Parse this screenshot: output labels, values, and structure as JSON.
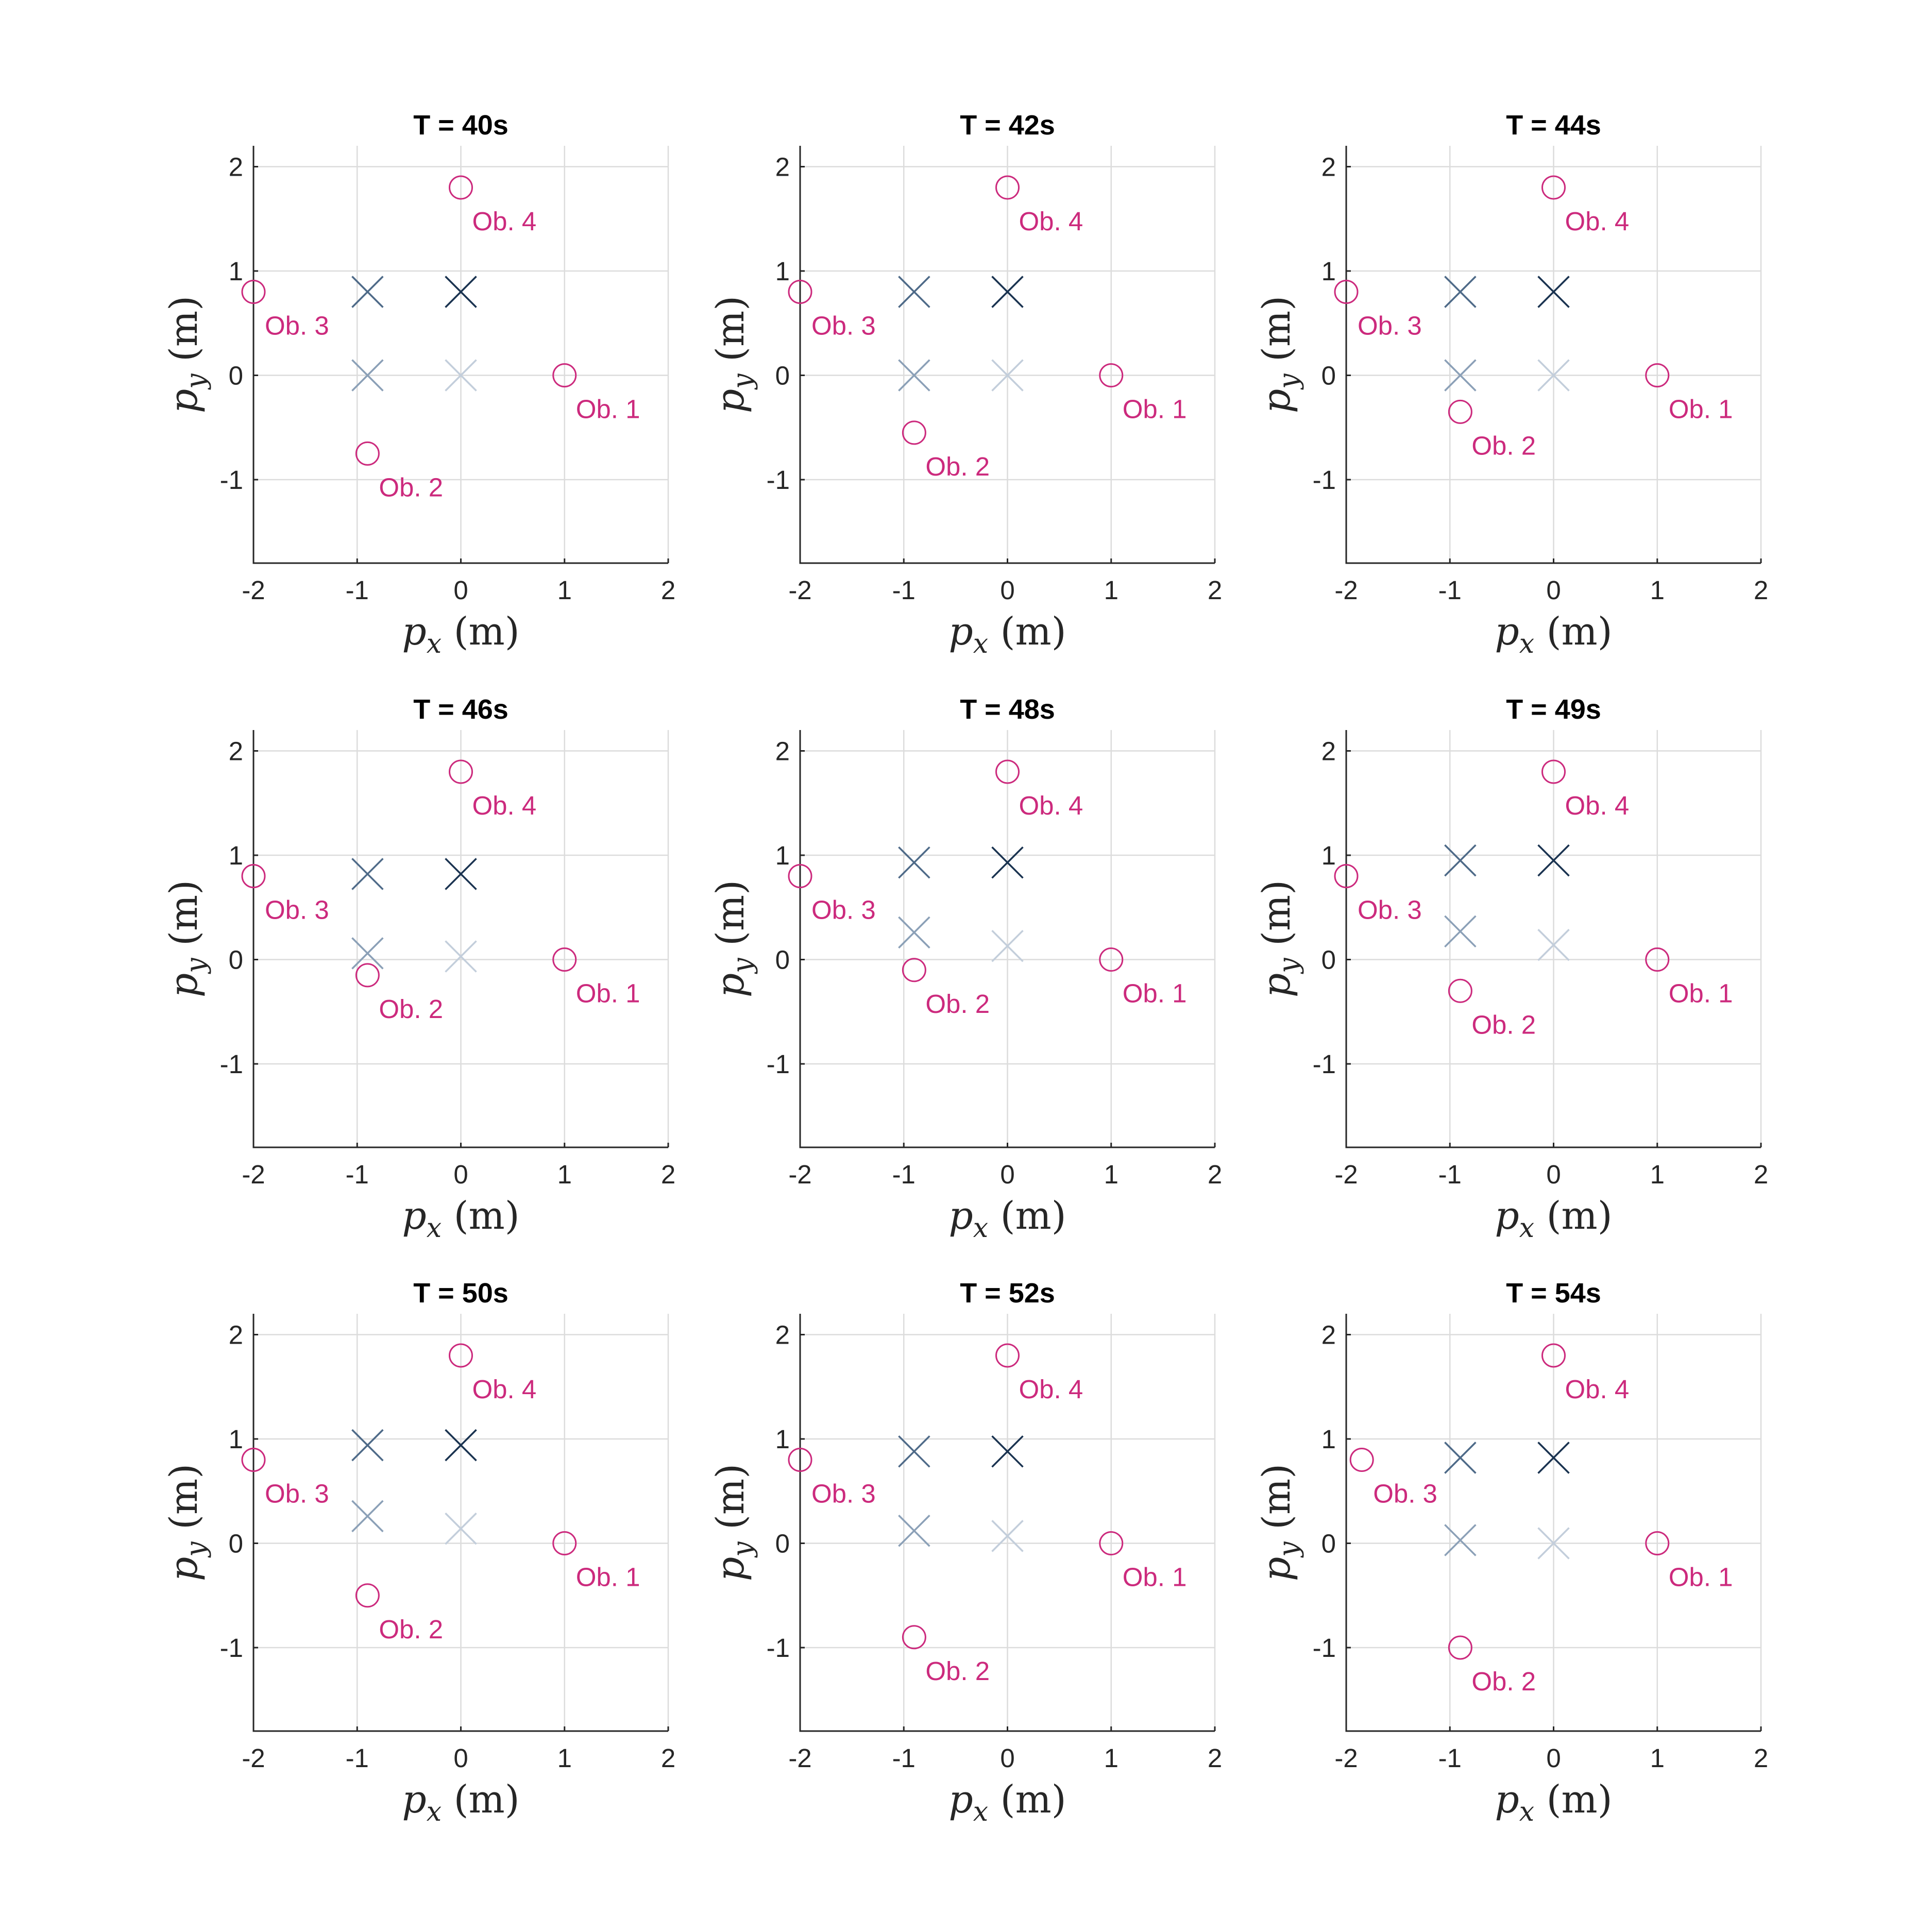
{
  "figure": {
    "colors": {
      "obstacle": "#cc2a7d",
      "agent_dark": "#1a3350",
      "agent_mid": "#4e6a88",
      "agent_light": "#8ba0b7",
      "agent_faint": "#c3cedb"
    }
  },
  "chart_data": [
    {
      "type": "scatter",
      "title": "T = 40s",
      "xlabel": "p_x (m)",
      "ylabel": "p_y (m)",
      "xlim": [
        -2,
        2
      ],
      "ylim": [
        -1.8,
        2.2
      ],
      "xticks": [
        -2,
        -1,
        0,
        1,
        2
      ],
      "yticks": [
        -1,
        0,
        1,
        2
      ],
      "xtick_labels": [
        "-2",
        "-1",
        "0",
        "1",
        "2"
      ],
      "ytick_labels": [
        "-1",
        "0",
        "1",
        "2"
      ],
      "grid": true,
      "obstacles": [
        {
          "label": "Ob. 1",
          "x": 1.0,
          "y": 0.0
        },
        {
          "label": "Ob. 2",
          "x": -0.9,
          "y": -0.75
        },
        {
          "label": "Ob. 3",
          "x": -2.0,
          "y": 0.8
        },
        {
          "label": "Ob. 4",
          "x": 0.0,
          "y": 1.8
        }
      ],
      "agents": [
        {
          "x": 0.0,
          "y": 0.8,
          "shade": "agent_dark"
        },
        {
          "x": -0.9,
          "y": 0.8,
          "shade": "agent_mid"
        },
        {
          "x": -0.9,
          "y": 0.0,
          "shade": "agent_light"
        },
        {
          "x": 0.0,
          "y": 0.0,
          "shade": "agent_faint"
        }
      ]
    },
    {
      "type": "scatter",
      "title": "T = 42s",
      "xlabel": "p_x (m)",
      "ylabel": "p_y (m)",
      "xlim": [
        -2,
        2
      ],
      "ylim": [
        -1.8,
        2.2
      ],
      "xticks": [
        -2,
        -1,
        0,
        1,
        2
      ],
      "yticks": [
        -1,
        0,
        1,
        2
      ],
      "xtick_labels": [
        "-2",
        "-1",
        "0",
        "1",
        "2"
      ],
      "ytick_labels": [
        "-1",
        "0",
        "1",
        "2"
      ],
      "grid": true,
      "obstacles": [
        {
          "label": "Ob. 1",
          "x": 1.0,
          "y": 0.0
        },
        {
          "label": "Ob. 2",
          "x": -0.9,
          "y": -0.55
        },
        {
          "label": "Ob. 3",
          "x": -2.0,
          "y": 0.8
        },
        {
          "label": "Ob. 4",
          "x": 0.0,
          "y": 1.8
        }
      ],
      "agents": [
        {
          "x": 0.0,
          "y": 0.8,
          "shade": "agent_dark"
        },
        {
          "x": -0.9,
          "y": 0.8,
          "shade": "agent_mid"
        },
        {
          "x": -0.9,
          "y": 0.0,
          "shade": "agent_light"
        },
        {
          "x": 0.0,
          "y": 0.0,
          "shade": "agent_faint"
        }
      ]
    },
    {
      "type": "scatter",
      "title": "T = 44s",
      "xlabel": "p_x (m)",
      "ylabel": "p_y (m)",
      "xlim": [
        -2,
        2
      ],
      "ylim": [
        -1.8,
        2.2
      ],
      "xticks": [
        -2,
        -1,
        0,
        1,
        2
      ],
      "yticks": [
        -1,
        0,
        1,
        2
      ],
      "xtick_labels": [
        "-2",
        "-1",
        "0",
        "1",
        "2"
      ],
      "ytick_labels": [
        "-1",
        "0",
        "1",
        "2"
      ],
      "grid": true,
      "obstacles": [
        {
          "label": "Ob. 1",
          "x": 1.0,
          "y": 0.0
        },
        {
          "label": "Ob. 2",
          "x": -0.9,
          "y": -0.35
        },
        {
          "label": "Ob. 3",
          "x": -2.0,
          "y": 0.8
        },
        {
          "label": "Ob. 4",
          "x": 0.0,
          "y": 1.8
        }
      ],
      "agents": [
        {
          "x": 0.0,
          "y": 0.8,
          "shade": "agent_dark"
        },
        {
          "x": -0.9,
          "y": 0.8,
          "shade": "agent_mid"
        },
        {
          "x": -0.9,
          "y": 0.0,
          "shade": "agent_light"
        },
        {
          "x": 0.0,
          "y": 0.0,
          "shade": "agent_faint"
        }
      ]
    },
    {
      "type": "scatter",
      "title": "T = 46s",
      "xlabel": "p_x (m)",
      "ylabel": "p_y (m)",
      "xlim": [
        -2,
        2
      ],
      "ylim": [
        -1.8,
        2.2
      ],
      "xticks": [
        -2,
        -1,
        0,
        1,
        2
      ],
      "yticks": [
        -1,
        0,
        1,
        2
      ],
      "xtick_labels": [
        "-2",
        "-1",
        "0",
        "1",
        "2"
      ],
      "ytick_labels": [
        "-1",
        "0",
        "1",
        "2"
      ],
      "grid": true,
      "obstacles": [
        {
          "label": "Ob. 1",
          "x": 1.0,
          "y": 0.0
        },
        {
          "label": "Ob. 2",
          "x": -0.9,
          "y": -0.15
        },
        {
          "label": "Ob. 3",
          "x": -2.0,
          "y": 0.8
        },
        {
          "label": "Ob. 4",
          "x": 0.0,
          "y": 1.8
        }
      ],
      "agents": [
        {
          "x": 0.0,
          "y": 0.82,
          "shade": "agent_dark"
        },
        {
          "x": -0.9,
          "y": 0.82,
          "shade": "agent_mid"
        },
        {
          "x": -0.9,
          "y": 0.06,
          "shade": "agent_light"
        },
        {
          "x": 0.0,
          "y": 0.03,
          "shade": "agent_faint"
        }
      ]
    },
    {
      "type": "scatter",
      "title": "T = 48s",
      "xlabel": "p_x (m)",
      "ylabel": "p_y (m)",
      "xlim": [
        -2,
        2
      ],
      "ylim": [
        -1.8,
        2.2
      ],
      "xticks": [
        -2,
        -1,
        0,
        1,
        2
      ],
      "yticks": [
        -1,
        0,
        1,
        2
      ],
      "xtick_labels": [
        "-2",
        "-1",
        "0",
        "1",
        "2"
      ],
      "ytick_labels": [
        "-1",
        "0",
        "1",
        "2"
      ],
      "grid": true,
      "obstacles": [
        {
          "label": "Ob. 1",
          "x": 1.0,
          "y": 0.0
        },
        {
          "label": "Ob. 2",
          "x": -0.9,
          "y": -0.1
        },
        {
          "label": "Ob. 3",
          "x": -2.0,
          "y": 0.8
        },
        {
          "label": "Ob. 4",
          "x": 0.0,
          "y": 1.8
        }
      ],
      "agents": [
        {
          "x": 0.0,
          "y": 0.93,
          "shade": "agent_dark"
        },
        {
          "x": -0.9,
          "y": 0.93,
          "shade": "agent_mid"
        },
        {
          "x": -0.9,
          "y": 0.26,
          "shade": "agent_light"
        },
        {
          "x": 0.0,
          "y": 0.13,
          "shade": "agent_faint"
        }
      ]
    },
    {
      "type": "scatter",
      "title": "T = 49s",
      "xlabel": "p_x (m)",
      "ylabel": "p_y (m)",
      "xlim": [
        -2,
        2
      ],
      "ylim": [
        -1.8,
        2.2
      ],
      "xticks": [
        -2,
        -1,
        0,
        1,
        2
      ],
      "yticks": [
        -1,
        0,
        1,
        2
      ],
      "xtick_labels": [
        "-2",
        "-1",
        "0",
        "1",
        "2"
      ],
      "ytick_labels": [
        "-1",
        "0",
        "1",
        "2"
      ],
      "grid": true,
      "obstacles": [
        {
          "label": "Ob. 1",
          "x": 1.0,
          "y": 0.0
        },
        {
          "label": "Ob. 2",
          "x": -0.9,
          "y": -0.3
        },
        {
          "label": "Ob. 3",
          "x": -2.0,
          "y": 0.8
        },
        {
          "label": "Ob. 4",
          "x": 0.0,
          "y": 1.8
        }
      ],
      "agents": [
        {
          "x": 0.0,
          "y": 0.95,
          "shade": "agent_dark"
        },
        {
          "x": -0.9,
          "y": 0.95,
          "shade": "agent_mid"
        },
        {
          "x": -0.9,
          "y": 0.27,
          "shade": "agent_light"
        },
        {
          "x": 0.0,
          "y": 0.14,
          "shade": "agent_faint"
        }
      ]
    },
    {
      "type": "scatter",
      "title": "T = 50s",
      "xlabel": "p_x (m)",
      "ylabel": "p_y (m)",
      "xlim": [
        -2,
        2
      ],
      "ylim": [
        -1.8,
        2.2
      ],
      "xticks": [
        -2,
        -1,
        0,
        1,
        2
      ],
      "yticks": [
        -1,
        0,
        1,
        2
      ],
      "xtick_labels": [
        "-2",
        "-1",
        "0",
        "1",
        "2"
      ],
      "ytick_labels": [
        "-1",
        "0",
        "1",
        "2"
      ],
      "grid": true,
      "obstacles": [
        {
          "label": "Ob. 1",
          "x": 1.0,
          "y": 0.0
        },
        {
          "label": "Ob. 2",
          "x": -0.9,
          "y": -0.5
        },
        {
          "label": "Ob. 3",
          "x": -2.0,
          "y": 0.8
        },
        {
          "label": "Ob. 4",
          "x": 0.0,
          "y": 1.8
        }
      ],
      "agents": [
        {
          "x": 0.0,
          "y": 0.94,
          "shade": "agent_dark"
        },
        {
          "x": -0.9,
          "y": 0.94,
          "shade": "agent_mid"
        },
        {
          "x": -0.9,
          "y": 0.26,
          "shade": "agent_light"
        },
        {
          "x": 0.0,
          "y": 0.14,
          "shade": "agent_faint"
        }
      ]
    },
    {
      "type": "scatter",
      "title": "T = 52s",
      "xlabel": "p_x (m)",
      "ylabel": "p_y (m)",
      "xlim": [
        -2,
        2
      ],
      "ylim": [
        -1.8,
        2.2
      ],
      "xticks": [
        -2,
        -1,
        0,
        1,
        2
      ],
      "yticks": [
        -1,
        0,
        1,
        2
      ],
      "xtick_labels": [
        "-2",
        "-1",
        "0",
        "1",
        "2"
      ],
      "ytick_labels": [
        "-1",
        "0",
        "1",
        "2"
      ],
      "grid": true,
      "obstacles": [
        {
          "label": "Ob. 1",
          "x": 1.0,
          "y": 0.0
        },
        {
          "label": "Ob. 2",
          "x": -0.9,
          "y": -0.9
        },
        {
          "label": "Ob. 3",
          "x": -2.0,
          "y": 0.8
        },
        {
          "label": "Ob. 4",
          "x": 0.0,
          "y": 1.8
        }
      ],
      "agents": [
        {
          "x": 0.0,
          "y": 0.88,
          "shade": "agent_dark"
        },
        {
          "x": -0.9,
          "y": 0.88,
          "shade": "agent_mid"
        },
        {
          "x": -0.9,
          "y": 0.12,
          "shade": "agent_light"
        },
        {
          "x": 0.0,
          "y": 0.07,
          "shade": "agent_faint"
        }
      ]
    },
    {
      "type": "scatter",
      "title": "T = 54s",
      "xlabel": "p_x (m)",
      "ylabel": "p_y (m)",
      "xlim": [
        -2,
        2
      ],
      "ylim": [
        -1.8,
        2.2
      ],
      "xticks": [
        -2,
        -1,
        0,
        1,
        2
      ],
      "yticks": [
        -1,
        0,
        1,
        2
      ],
      "xtick_labels": [
        "-2",
        "-1",
        "0",
        "1",
        "2"
      ],
      "ytick_labels": [
        "-1",
        "0",
        "1",
        "2"
      ],
      "grid": true,
      "obstacles": [
        {
          "label": "Ob. 1",
          "x": 1.0,
          "y": 0.0
        },
        {
          "label": "Ob. 2",
          "x": -0.9,
          "y": -1.0
        },
        {
          "label": "Ob. 3",
          "x": -1.85,
          "y": 0.8
        },
        {
          "label": "Ob. 4",
          "x": 0.0,
          "y": 1.8
        }
      ],
      "agents": [
        {
          "x": 0.0,
          "y": 0.82,
          "shade": "agent_dark"
        },
        {
          "x": -0.9,
          "y": 0.82,
          "shade": "agent_mid"
        },
        {
          "x": -0.9,
          "y": 0.03,
          "shade": "agent_light"
        },
        {
          "x": 0.0,
          "y": 0.0,
          "shade": "agent_faint"
        }
      ]
    }
  ]
}
